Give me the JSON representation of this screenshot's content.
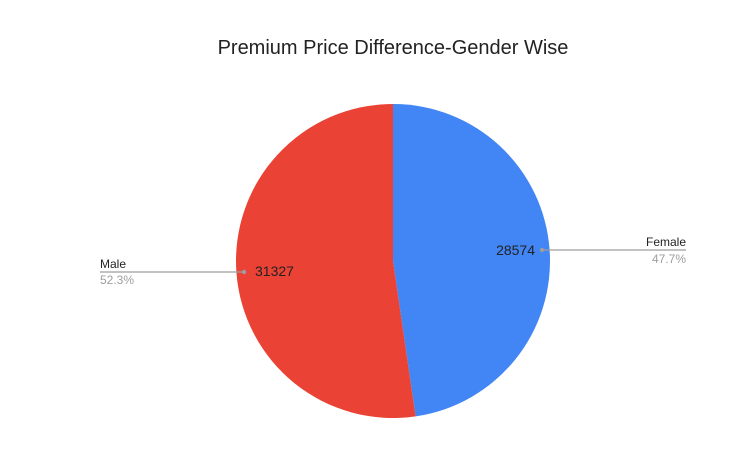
{
  "chart_data": {
    "type": "pie",
    "title": "Premium Price Difference-Gender Wise",
    "categories": [
      "Female",
      "Male"
    ],
    "values": [
      28574,
      31327
    ],
    "percentages": [
      "47.7%",
      "52.3%"
    ],
    "colors": [
      "#4285f4",
      "#ea4335"
    ],
    "start_angle_deg": 0,
    "direction": "clockwise",
    "legend_position": "labeled callouts"
  },
  "slices": [
    {
      "name": "Female",
      "value_label": "28574",
      "pct_label": "47.7%",
      "color": "#4285f4"
    },
    {
      "name": "Male",
      "value_label": "31327",
      "pct_label": "52.3%",
      "color": "#ea4335"
    }
  ]
}
